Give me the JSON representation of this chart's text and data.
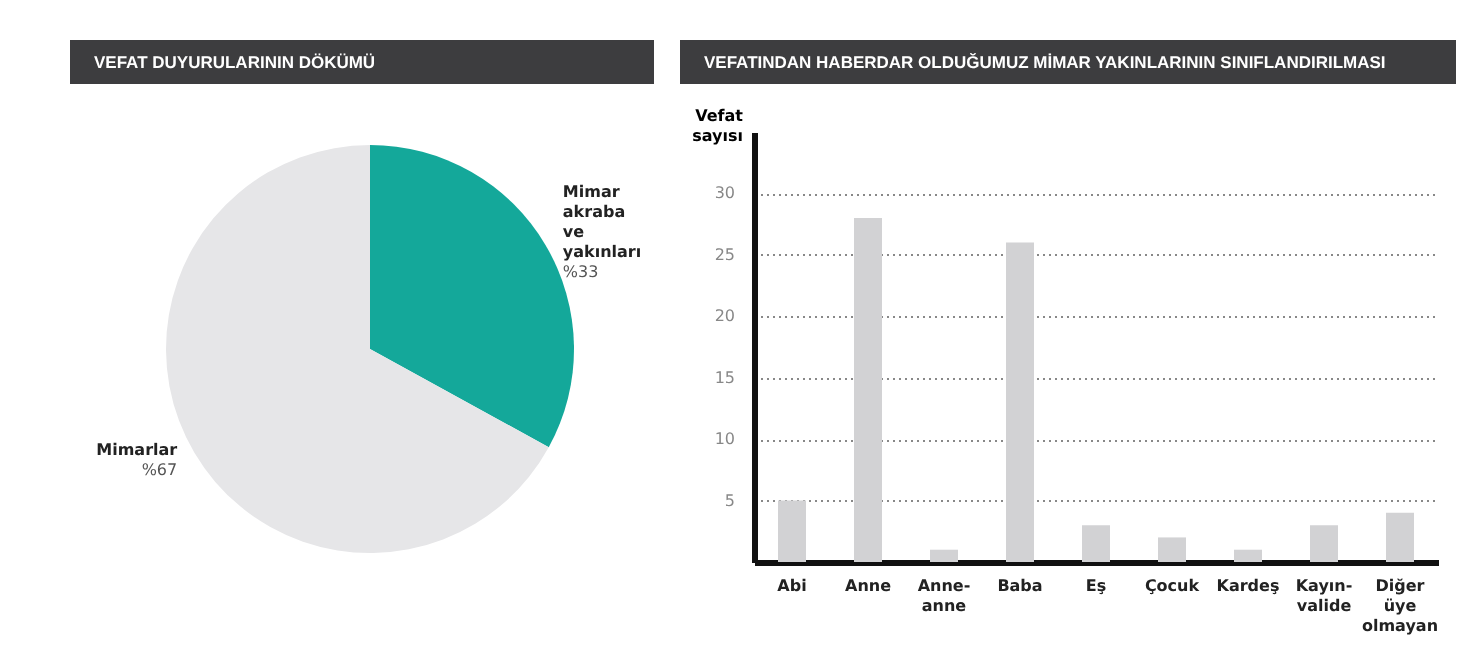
{
  "chart_data": [
    {
      "type": "pie",
      "title": "VEFAT DUYURULARININ DÖKÜMÜ",
      "categories": [
        "Mimar akraba ve yakınları",
        "Mimarlar"
      ],
      "values": [
        33,
        67
      ],
      "colors": [
        "#14a89a",
        "#e6e6e8"
      ],
      "value_labels": [
        "%33",
        "%67"
      ]
    },
    {
      "type": "bar",
      "title": "VEFATINDAN HABERDAR OLDUĞUMUZ MİMAR YAKINLARININ SINIFLANDIRILMASI",
      "ylabel": "Vefat sayısı",
      "categories": [
        "Abi",
        "Anne",
        "Anne-anne",
        "Baba",
        "Eş",
        "Çocuk",
        "Kardeş",
        "Kayın-valide",
        "Diğer üye olmayan"
      ],
      "series": [
        {
          "color": "#d2d2d4",
          "values": [
            5,
            28,
            1,
            26,
            3,
            2,
            1,
            3,
            4
          ]
        }
      ],
      "ylim": [
        0,
        35
      ],
      "yticks": [
        5,
        10,
        15,
        20,
        25,
        30
      ],
      "grid": "y"
    }
  ]
}
